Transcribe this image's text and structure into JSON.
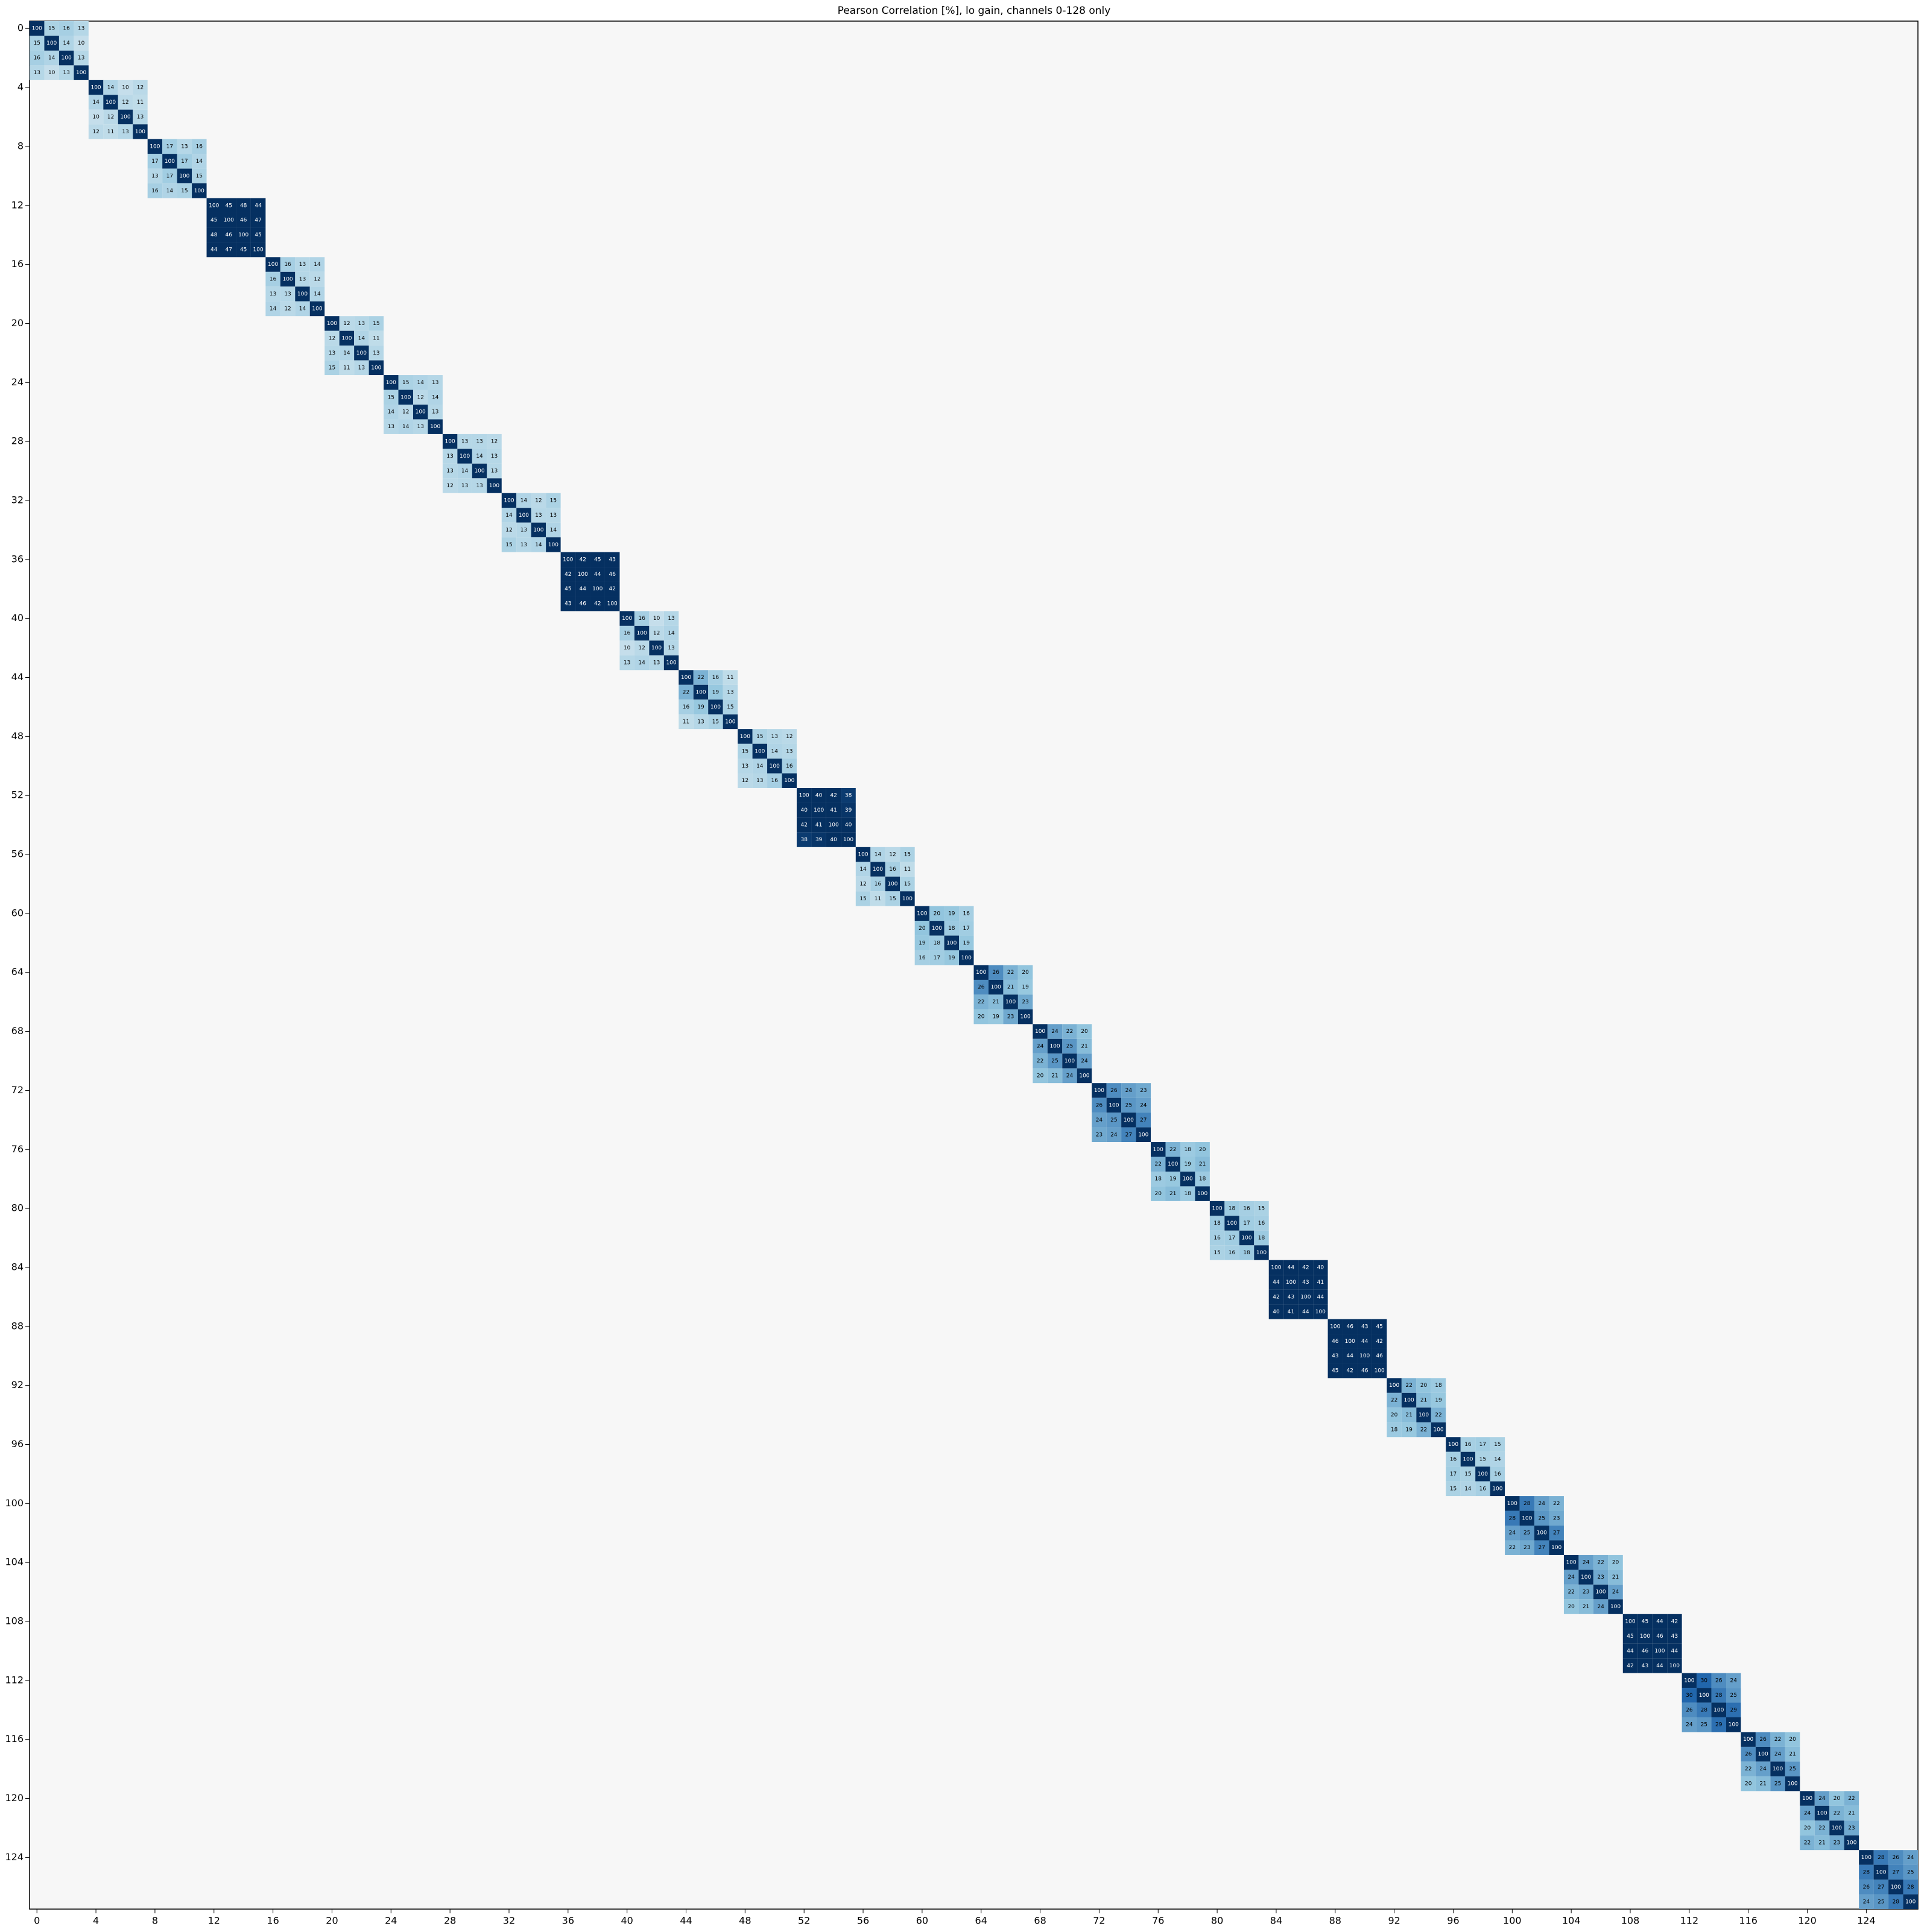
{
  "chart_data": {
    "type": "heatmap",
    "title": "Pearson Correlation [%], lo gain, channels 0-128 only",
    "xticks": [
      0,
      4,
      8,
      12,
      16,
      20,
      24,
      28,
      32,
      36,
      40,
      44,
      48,
      52,
      56,
      60,
      64,
      68,
      72,
      76,
      80,
      84,
      88,
      92,
      96,
      100,
      104,
      108,
      112,
      116,
      120,
      124
    ],
    "yticks": [
      0,
      4,
      8,
      12,
      16,
      20,
      24,
      28,
      32,
      36,
      40,
      44,
      48,
      52,
      56,
      60,
      64,
      68,
      72,
      76,
      80,
      84,
      88,
      92,
      96,
      100,
      104,
      108,
      112,
      116,
      120,
      124
    ],
    "clim": [
      -40,
      40
    ],
    "blocks": [
      {
        "values": [
          [
            100,
            15,
            16,
            13
          ],
          [
            15,
            100,
            14,
            10
          ],
          [
            16,
            14,
            100,
            13
          ],
          [
            13,
            10,
            13,
            100
          ]
        ]
      },
      {
        "values": [
          [
            100,
            14,
            10,
            12
          ],
          [
            14,
            100,
            12,
            11
          ],
          [
            10,
            12,
            100,
            13
          ],
          [
            12,
            11,
            13,
            100
          ]
        ]
      },
      {
        "values": [
          [
            100,
            17,
            13,
            16
          ],
          [
            17,
            100,
            17,
            14
          ],
          [
            13,
            17,
            100,
            15
          ],
          [
            16,
            14,
            15,
            100
          ]
        ]
      },
      {
        "values": [
          [
            100,
            45,
            48,
            44
          ],
          [
            45,
            100,
            46,
            47
          ],
          [
            48,
            46,
            100,
            45
          ],
          [
            44,
            47,
            45,
            100
          ]
        ]
      },
      {
        "values": [
          [
            100,
            16,
            13,
            14
          ],
          [
            16,
            100,
            13,
            12
          ],
          [
            13,
            13,
            100,
            14
          ],
          [
            14,
            12,
            14,
            100
          ]
        ]
      },
      {
        "values": [
          [
            100,
            12,
            13,
            15
          ],
          [
            12,
            100,
            14,
            11
          ],
          [
            13,
            14,
            100,
            13
          ],
          [
            15,
            11,
            13,
            100
          ]
        ]
      },
      {
        "values": [
          [
            100,
            15,
            14,
            13
          ],
          [
            15,
            100,
            12,
            14
          ],
          [
            14,
            12,
            100,
            13
          ],
          [
            13,
            14,
            13,
            100
          ]
        ]
      },
      {
        "values": [
          [
            100,
            13,
            13,
            12
          ],
          [
            13,
            100,
            14,
            13
          ],
          [
            13,
            14,
            100,
            13
          ],
          [
            12,
            13,
            13,
            100
          ]
        ]
      },
      {
        "values": [
          [
            100,
            14,
            12,
            15
          ],
          [
            14,
            100,
            13,
            13
          ],
          [
            12,
            13,
            100,
            14
          ],
          [
            15,
            13,
            14,
            100
          ]
        ]
      },
      {
        "values": [
          [
            100,
            42,
            45,
            43
          ],
          [
            42,
            100,
            44,
            46
          ],
          [
            45,
            44,
            100,
            42
          ],
          [
            43,
            46,
            42,
            100
          ]
        ]
      },
      {
        "values": [
          [
            100,
            16,
            10,
            13
          ],
          [
            16,
            100,
            12,
            14
          ],
          [
            10,
            12,
            100,
            13
          ],
          [
            13,
            14,
            13,
            100
          ]
        ]
      },
      {
        "values": [
          [
            100,
            22,
            16,
            11
          ],
          [
            22,
            100,
            19,
            13
          ],
          [
            16,
            19,
            100,
            15
          ],
          [
            11,
            13,
            15,
            100
          ]
        ]
      },
      {
        "values": [
          [
            100,
            15,
            13,
            12
          ],
          [
            15,
            100,
            14,
            13
          ],
          [
            13,
            14,
            100,
            16
          ],
          [
            12,
            13,
            16,
            100
          ]
        ]
      },
      {
        "values": [
          [
            100,
            40,
            42,
            38
          ],
          [
            40,
            100,
            41,
            39
          ],
          [
            42,
            41,
            100,
            40
          ],
          [
            38,
            39,
            40,
            100
          ]
        ]
      },
      {
        "values": [
          [
            100,
            14,
            12,
            15
          ],
          [
            14,
            100,
            16,
            11
          ],
          [
            12,
            16,
            100,
            15
          ],
          [
            15,
            11,
            15,
            100
          ]
        ]
      },
      {
        "values": [
          [
            100,
            20,
            19,
            16
          ],
          [
            20,
            100,
            18,
            17
          ],
          [
            19,
            18,
            100,
            19
          ],
          [
            16,
            17,
            19,
            100
          ]
        ]
      },
      {
        "values": [
          [
            100,
            26,
            22,
            20
          ],
          [
            26,
            100,
            21,
            19
          ],
          [
            22,
            21,
            100,
            23
          ],
          [
            20,
            19,
            23,
            100
          ]
        ]
      },
      {
        "values": [
          [
            100,
            24,
            22,
            20
          ],
          [
            24,
            100,
            25,
            21
          ],
          [
            22,
            25,
            100,
            24
          ],
          [
            20,
            21,
            24,
            100
          ]
        ]
      },
      {
        "values": [
          [
            100,
            26,
            24,
            23
          ],
          [
            26,
            100,
            25,
            24
          ],
          [
            24,
            25,
            100,
            27
          ],
          [
            23,
            24,
            27,
            100
          ]
        ]
      },
      {
        "values": [
          [
            100,
            22,
            18,
            20
          ],
          [
            22,
            100,
            19,
            21
          ],
          [
            18,
            19,
            100,
            18
          ],
          [
            20,
            21,
            18,
            100
          ]
        ]
      },
      {
        "values": [
          [
            100,
            18,
            16,
            15
          ],
          [
            18,
            100,
            17,
            16
          ],
          [
            16,
            17,
            100,
            18
          ],
          [
            15,
            16,
            18,
            100
          ]
        ]
      },
      {
        "values": [
          [
            100,
            44,
            42,
            40
          ],
          [
            44,
            100,
            43,
            41
          ],
          [
            42,
            43,
            100,
            44
          ],
          [
            40,
            41,
            44,
            100
          ]
        ]
      },
      {
        "values": [
          [
            100,
            46,
            43,
            45
          ],
          [
            46,
            100,
            44,
            42
          ],
          [
            43,
            44,
            100,
            46
          ],
          [
            45,
            42,
            46,
            100
          ]
        ]
      },
      {
        "values": [
          [
            100,
            22,
            20,
            18
          ],
          [
            22,
            100,
            21,
            19
          ],
          [
            20,
            21,
            100,
            22
          ],
          [
            18,
            19,
            22,
            100
          ]
        ]
      },
      {
        "values": [
          [
            100,
            16,
            17,
            15
          ],
          [
            16,
            100,
            15,
            14
          ],
          [
            17,
            15,
            100,
            16
          ],
          [
            15,
            14,
            16,
            100
          ]
        ]
      },
      {
        "values": [
          [
            100,
            28,
            24,
            22
          ],
          [
            28,
            100,
            25,
            23
          ],
          [
            24,
            25,
            100,
            27
          ],
          [
            22,
            23,
            27,
            100
          ]
        ]
      },
      {
        "values": [
          [
            100,
            24,
            22,
            20
          ],
          [
            24,
            100,
            23,
            21
          ],
          [
            22,
            23,
            100,
            24
          ],
          [
            20,
            21,
            24,
            100
          ]
        ]
      },
      {
        "values": [
          [
            100,
            45,
            44,
            42
          ],
          [
            45,
            100,
            46,
            43
          ],
          [
            44,
            46,
            100,
            44
          ],
          [
            42,
            43,
            44,
            100
          ]
        ]
      },
      {
        "values": [
          [
            100,
            30,
            26,
            24
          ],
          [
            30,
            100,
            28,
            25
          ],
          [
            26,
            28,
            100,
            29
          ],
          [
            24,
            25,
            29,
            100
          ]
        ]
      },
      {
        "values": [
          [
            100,
            26,
            22,
            20
          ],
          [
            26,
            100,
            24,
            21
          ],
          [
            22,
            24,
            100,
            25
          ],
          [
            20,
            21,
            25,
            100
          ]
        ]
      },
      {
        "values": [
          [
            100,
            24,
            20,
            22
          ],
          [
            24,
            100,
            22,
            21
          ],
          [
            20,
            22,
            100,
            23
          ],
          [
            22,
            21,
            23,
            100
          ]
        ]
      },
      {
        "values": [
          [
            100,
            28,
            26,
            24
          ],
          [
            28,
            100,
            27,
            25
          ],
          [
            26,
            27,
            100,
            28
          ],
          [
            24,
            25,
            28,
            100
          ]
        ]
      }
    ]
  }
}
